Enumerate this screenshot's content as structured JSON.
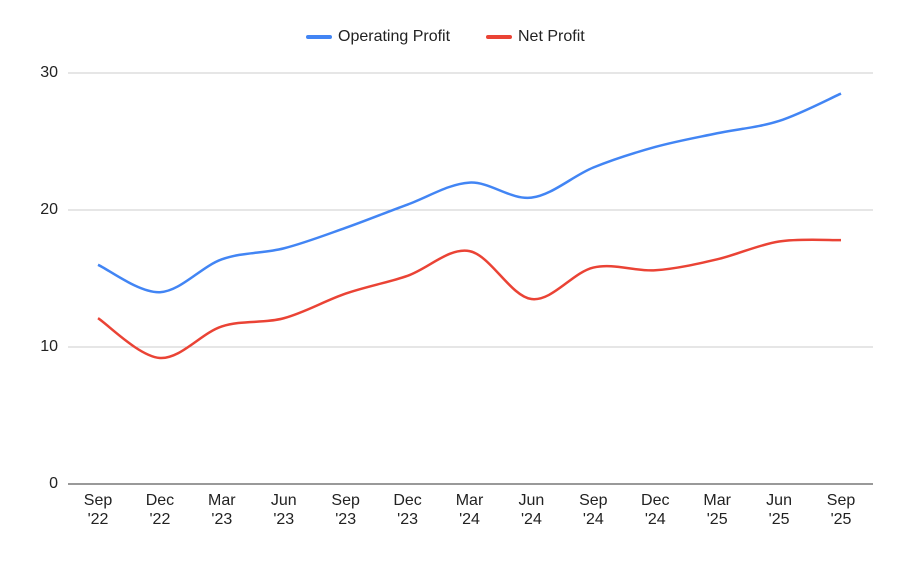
{
  "chart_data": {
    "type": "line",
    "categories": [
      [
        "Sep",
        "'22"
      ],
      [
        "Dec",
        "'22"
      ],
      [
        "Mar",
        "'23"
      ],
      [
        "Jun",
        "'23"
      ],
      [
        "Sep",
        "'23"
      ],
      [
        "Dec",
        "'23"
      ],
      [
        "Mar",
        "'24"
      ],
      [
        "Jun",
        "'24"
      ],
      [
        "Sep",
        "'24"
      ],
      [
        "Dec",
        "'24"
      ],
      [
        "Mar",
        "'25"
      ],
      [
        "Jun",
        "'25"
      ],
      [
        "Sep",
        "'25"
      ]
    ],
    "series": [
      {
        "name": "Operating Profit",
        "color": "#4285f4",
        "values": [
          16.0,
          14.0,
          16.4,
          17.2,
          18.7,
          20.4,
          22.0,
          20.9,
          23.1,
          24.6,
          25.6,
          26.5,
          28.5
        ]
      },
      {
        "name": "Net Profit",
        "color": "#ea4335",
        "values": [
          12.1,
          9.2,
          11.5,
          12.1,
          13.9,
          15.2,
          17.0,
          13.5,
          15.8,
          15.6,
          16.4,
          17.7,
          17.8
        ]
      }
    ],
    "ylim": [
      0,
      30
    ],
    "yticks": [
      0,
      10,
      20,
      30
    ],
    "grid": true,
    "legend": "top"
  }
}
